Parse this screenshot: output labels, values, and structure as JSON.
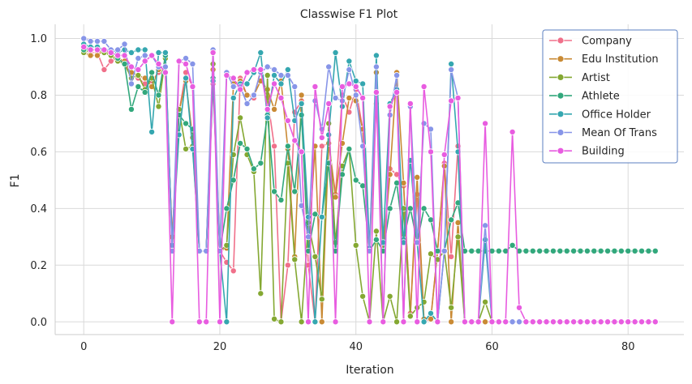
{
  "chart_data": {
    "type": "line",
    "title": "Classwise F1 Plot",
    "xlabel": "Iteration",
    "ylabel": "F1",
    "xlim": [
      -4.2,
      88.2
    ],
    "ylim": [
      -0.045,
      1.05
    ],
    "x_ticks": [
      0,
      20,
      40,
      60,
      80
    ],
    "x_tick_labels": [
      "0",
      "20",
      "40",
      "60",
      "80"
    ],
    "y_ticks": [
      0.0,
      0.2,
      0.4,
      0.6,
      0.8,
      1.0
    ],
    "y_tick_labels": [
      "0.0",
      "0.2",
      "0.4",
      "0.6",
      "0.8",
      "1.0"
    ],
    "grid": true,
    "legend_position": "top-right",
    "markers": "circle",
    "series": [
      {
        "name": "Company",
        "color": "#f0708a",
        "values": [
          0.97,
          0.95,
          0.95,
          0.89,
          0.92,
          0.93,
          0.91,
          0.87,
          0.86,
          0.84,
          0.85,
          0.88,
          0.88,
          0.3,
          0.74,
          0.88,
          0.83,
          0.25,
          0.25,
          0.84,
          0.25,
          0.21,
          0.18,
          0.86,
          0.8,
          0.79,
          0.89,
          0.79,
          0.62,
          0.0,
          0.2,
          0.74,
          0.78,
          0.2,
          0.0,
          0.62,
          0.63,
          0.45,
          0.8,
          0.74,
          0.82,
          0.68,
          0.25,
          0.77,
          0.25,
          0.54,
          0.52,
          0.48,
          0.03,
          0.45,
          0.0,
          0.01,
          0.25,
          0.56,
          0.23,
          0.62,
          0.0,
          0.0,
          0.0,
          0.0,
          0.0,
          0.0,
          0.0,
          0.0,
          0.0,
          0.0,
          0.0,
          0.0,
          0.0,
          0.0,
          0.0,
          0.0,
          0.0,
          0.0,
          0.0,
          0.0,
          0.0,
          0.0,
          0.0,
          0.0,
          0.0,
          0.0,
          0.0,
          0.0,
          0.0
        ]
      },
      {
        "name": "Edu Institution",
        "color": "#c98a34",
        "values": [
          0.95,
          0.94,
          0.94,
          0.96,
          0.94,
          0.93,
          0.92,
          0.88,
          0.87,
          0.86,
          0.83,
          0.89,
          0.88,
          0.3,
          0.74,
          0.85,
          0.65,
          0.25,
          0.25,
          0.89,
          0.25,
          0.26,
          0.84,
          0.85,
          0.8,
          0.8,
          0.85,
          0.82,
          0.75,
          0.85,
          0.61,
          0.23,
          0.8,
          0.25,
          0.62,
          0.0,
          0.63,
          0.44,
          0.63,
          0.79,
          0.78,
          0.68,
          0.25,
          0.88,
          0.25,
          0.52,
          0.88,
          0.49,
          0.02,
          0.51,
          0.01,
          0.01,
          0.25,
          0.55,
          0.0,
          0.35,
          0.0,
          0.0,
          0.0,
          0.0,
          0.0,
          0.0,
          0.0,
          0.0,
          0.0,
          0.0,
          0.0,
          0.0,
          0.0,
          0.0,
          0.0,
          0.0,
          0.0,
          0.0,
          0.0,
          0.0,
          0.0,
          0.0,
          0.0,
          0.0,
          0.0,
          0.0,
          0.0,
          0.0,
          0.0
        ]
      },
      {
        "name": "Artist",
        "color": "#84a832",
        "values": [
          0.95,
          0.96,
          0.96,
          0.95,
          0.94,
          0.92,
          0.91,
          0.86,
          0.87,
          0.82,
          0.86,
          0.76,
          0.93,
          0.25,
          0.75,
          0.61,
          0.62,
          0.25,
          0.25,
          0.91,
          0.25,
          0.27,
          0.59,
          0.72,
          0.59,
          0.53,
          0.1,
          0.87,
          0.01,
          0.0,
          0.56,
          0.22,
          0.0,
          0.35,
          0.23,
          0.08,
          0.7,
          0.28,
          0.55,
          0.61,
          0.27,
          0.09,
          0.0,
          0.32,
          0.0,
          0.09,
          0.0,
          0.4,
          0.02,
          0.05,
          0.07,
          0.24,
          0.22,
          0.25,
          0.05,
          0.3,
          0.0,
          0.0,
          0.0,
          0.07,
          0.0,
          0.0,
          0.0,
          0.0,
          0.0,
          0.0,
          0.0,
          0.0,
          0.0,
          0.0,
          0.0,
          0.0,
          0.0,
          0.0,
          0.0,
          0.0,
          0.0,
          0.0,
          0.0,
          0.0,
          0.0,
          0.0,
          0.0,
          0.0,
          0.0
        ]
      },
      {
        "name": "Athlete",
        "color": "#32a87c",
        "values": [
          0.96,
          0.96,
          0.96,
          0.96,
          0.96,
          0.93,
          0.91,
          0.75,
          0.83,
          0.81,
          0.88,
          0.8,
          0.94,
          0.27,
          0.73,
          0.7,
          0.68,
          0.25,
          0.25,
          0.86,
          0.25,
          0.4,
          0.5,
          0.63,
          0.61,
          0.54,
          0.56,
          0.73,
          0.46,
          0.43,
          0.62,
          0.46,
          0.73,
          0.25,
          0.38,
          0.37,
          0.56,
          0.25,
          0.52,
          0.61,
          0.5,
          0.48,
          0.25,
          0.29,
          0.25,
          0.4,
          0.49,
          0.29,
          0.4,
          0.28,
          0.4,
          0.36,
          0.25,
          0.25,
          0.36,
          0.42,
          0.25,
          0.25,
          0.25,
          0.25,
          0.25,
          0.25,
          0.25,
          0.27,
          0.25,
          0.25,
          0.25,
          0.25,
          0.25,
          0.25,
          0.25,
          0.25,
          0.25,
          0.25,
          0.25,
          0.25,
          0.25,
          0.25,
          0.25,
          0.25,
          0.25,
          0.25,
          0.25,
          0.25,
          0.25
        ]
      },
      {
        "name": "Office Holder",
        "color": "#35a7b0",
        "values": [
          0.98,
          0.97,
          0.97,
          0.96,
          0.96,
          0.95,
          0.96,
          0.95,
          0.96,
          0.96,
          0.67,
          0.95,
          0.95,
          0.27,
          0.66,
          0.86,
          0.61,
          0.25,
          0.25,
          0.85,
          0.25,
          0.0,
          0.79,
          0.84,
          0.84,
          0.88,
          0.95,
          0.72,
          0.87,
          0.84,
          0.89,
          0.71,
          0.77,
          0.37,
          0.0,
          0.37,
          0.66,
          0.95,
          0.76,
          0.92,
          0.85,
          0.84,
          0.26,
          0.94,
          0.28,
          0.77,
          0.82,
          0.28,
          0.57,
          0.28,
          0.0,
          0.03,
          0.0,
          0.25,
          0.91,
          0.6,
          0.0,
          0.0,
          0.0,
          0.29,
          0.0,
          0.0,
          0.0,
          0.0,
          0.0,
          0.0,
          0.0,
          0.0,
          0.0,
          0.0,
          0.0,
          0.0,
          0.0,
          0.0,
          0.0,
          0.0,
          0.0,
          0.0,
          0.0,
          0.0,
          0.0,
          0.0,
          0.0,
          0.0,
          0.0
        ]
      },
      {
        "name": "Mean Of Trans",
        "color": "#8795e8",
        "values": [
          1.0,
          0.99,
          0.99,
          0.99,
          0.96,
          0.96,
          0.98,
          0.84,
          0.93,
          0.94,
          0.94,
          0.9,
          0.9,
          0.25,
          0.92,
          0.93,
          0.91,
          0.25,
          0.25,
          0.96,
          0.25,
          0.88,
          0.83,
          0.83,
          0.77,
          0.8,
          0.88,
          0.9,
          0.89,
          0.87,
          0.87,
          0.83,
          0.41,
          0.3,
          0.78,
          0.68,
          0.9,
          0.79,
          0.78,
          0.89,
          0.8,
          0.62,
          0.25,
          0.9,
          0.0,
          0.73,
          0.87,
          0.0,
          0.76,
          0.28,
          0.7,
          0.68,
          0.0,
          0.25,
          0.89,
          0.79,
          0.0,
          0.0,
          0.0,
          0.34,
          0.0,
          0.0,
          0.0,
          0.0,
          0.0,
          0.0,
          0.0,
          0.0,
          0.0,
          0.0,
          0.0,
          0.0,
          0.0,
          0.0,
          0.0,
          0.0,
          0.0,
          0.0,
          0.0,
          0.0,
          0.0,
          0.0,
          0.0,
          0.0,
          0.0
        ]
      },
      {
        "name": "Building",
        "color": "#e85ce0",
        "values": [
          0.97,
          0.96,
          0.96,
          0.96,
          0.95,
          0.94,
          0.94,
          0.9,
          0.89,
          0.92,
          0.94,
          0.91,
          0.88,
          0.0,
          0.92,
          0.91,
          0.83,
          0.0,
          0.0,
          0.95,
          0.0,
          0.87,
          0.86,
          0.82,
          0.88,
          0.89,
          0.89,
          0.75,
          0.84,
          0.79,
          0.71,
          0.64,
          0.6,
          0.0,
          0.83,
          0.65,
          0.77,
          0.0,
          0.83,
          0.84,
          0.83,
          0.79,
          0.0,
          0.81,
          0.0,
          0.76,
          0.81,
          0.0,
          0.77,
          0.0,
          0.83,
          0.6,
          0.0,
          0.59,
          0.78,
          0.79,
          0.0,
          0.0,
          0.0,
          0.7,
          0.0,
          0.0,
          0.0,
          0.67,
          0.05,
          0.0,
          0.0,
          0.0,
          0.0,
          0.0,
          0.0,
          0.0,
          0.0,
          0.0,
          0.0,
          0.0,
          0.0,
          0.0,
          0.0,
          0.0,
          0.0,
          0.0,
          0.0,
          0.0,
          0.0
        ]
      }
    ]
  }
}
